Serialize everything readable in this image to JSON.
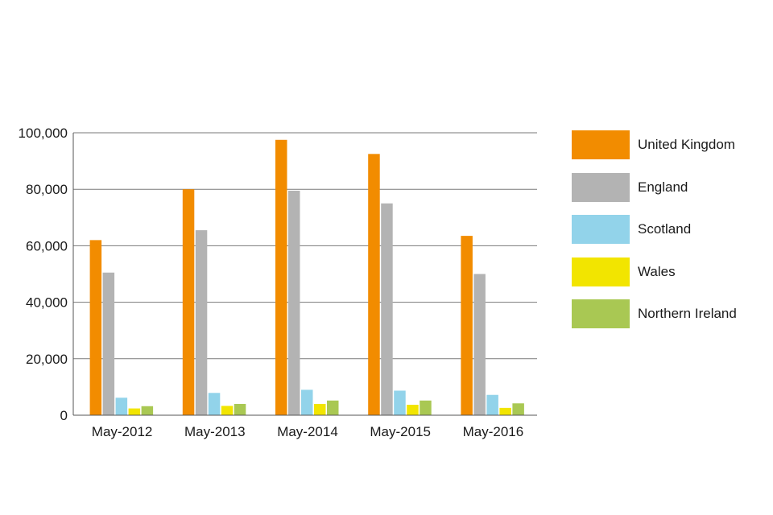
{
  "chart_data": {
    "type": "bar",
    "categories": [
      "May-2012",
      "May-2013",
      "May-2014",
      "May-2015",
      "May-2016"
    ],
    "series": [
      {
        "name": "United Kingdom",
        "color": "#f28c00",
        "values": [
          62000,
          80000,
          97500,
          92500,
          63500
        ]
      },
      {
        "name": "England",
        "color": "#b3b3b3",
        "values": [
          50500,
          65500,
          79500,
          75000,
          50000
        ]
      },
      {
        "name": "Scotland",
        "color": "#92d3ea",
        "values": [
          6200,
          7900,
          9000,
          8700,
          7200
        ]
      },
      {
        "name": "Wales",
        "color": "#f2e500",
        "values": [
          2400,
          3300,
          4000,
          3700,
          2600
        ]
      },
      {
        "name": "Northern Ireland",
        "color": "#a9c853",
        "values": [
          3200,
          4000,
          5200,
          5200,
          4200
        ]
      }
    ],
    "ylim": [
      0,
      100000
    ],
    "yticks": [
      0,
      20000,
      40000,
      60000,
      80000,
      100000
    ],
    "ytick_labels": [
      "0",
      "20,000",
      "40,000",
      "60,000",
      "80,000",
      "100,000"
    ],
    "grid": true,
    "legend_position": "right"
  }
}
